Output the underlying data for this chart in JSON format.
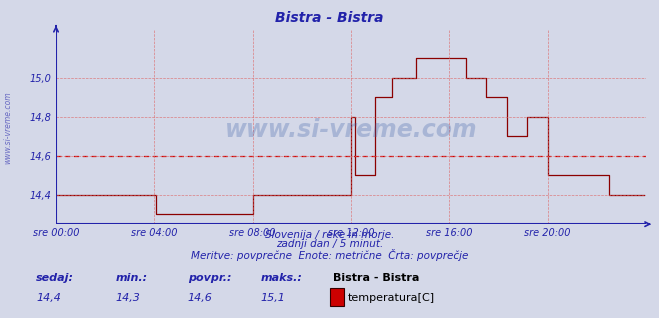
{
  "title": "Bistra - Bistra",
  "title_color": "#2222aa",
  "bg_color": "#d4d8e8",
  "plot_bg_color": "#d4d8e8",
  "line_color": "#8b0000",
  "avg_line_color": "#cc0000",
  "grid_color": "#dd6666",
  "axis_color": "#2222aa",
  "tick_color": "#2222aa",
  "ylim": [
    14.25,
    15.25
  ],
  "ytick_vals": [
    14.4,
    14.6,
    14.8,
    15.0
  ],
  "ytick_labels": [
    "14,4",
    "14,6",
    "14,8",
    "15,0"
  ],
  "avg_value": 14.6,
  "xtick_labels": [
    "sre 00:00",
    "sre 04:00",
    "sre 08:00",
    "sre 12:00",
    "sre 16:00",
    "sre 20:00"
  ],
  "xtick_positions": [
    0,
    48,
    96,
    144,
    192,
    240
  ],
  "total_points": 288,
  "subtitle1": "Slovenija / reke in morje.",
  "subtitle2": "zadnji dan / 5 minut.",
  "subtitle3": "Meritve: povprečne  Enote: metrične  Črta: povprečje",
  "footer_label1": "sedaj:",
  "footer_label2": "min.:",
  "footer_label3": "povpr.:",
  "footer_label4": "maks.:",
  "footer_val1": "14,4",
  "footer_val2": "14,3",
  "footer_val3": "14,6",
  "footer_val4": "15,1",
  "footer_series": "Bistra - Bistra",
  "footer_meas": "temperatura[C]",
  "watermark": "www.si-vreme.com",
  "left_label": "www.si-vreme.com",
  "temperature_data": [
    14.4,
    14.4,
    14.4,
    14.4,
    14.4,
    14.4,
    14.4,
    14.4,
    14.4,
    14.4,
    14.4,
    14.4,
    14.4,
    14.4,
    14.4,
    14.4,
    14.4,
    14.4,
    14.4,
    14.4,
    14.4,
    14.4,
    14.4,
    14.4,
    14.4,
    14.4,
    14.4,
    14.4,
    14.4,
    14.4,
    14.4,
    14.4,
    14.4,
    14.4,
    14.4,
    14.4,
    14.4,
    14.4,
    14.4,
    14.4,
    14.4,
    14.4,
    14.4,
    14.4,
    14.4,
    14.4,
    14.4,
    14.4,
    14.4,
    14.3,
    14.3,
    14.3,
    14.3,
    14.3,
    14.3,
    14.3,
    14.3,
    14.3,
    14.3,
    14.3,
    14.3,
    14.3,
    14.3,
    14.3,
    14.3,
    14.3,
    14.3,
    14.3,
    14.3,
    14.3,
    14.3,
    14.3,
    14.3,
    14.3,
    14.3,
    14.3,
    14.3,
    14.3,
    14.3,
    14.3,
    14.3,
    14.3,
    14.3,
    14.3,
    14.3,
    14.3,
    14.3,
    14.3,
    14.3,
    14.3,
    14.3,
    14.3,
    14.3,
    14.3,
    14.3,
    14.3,
    14.4,
    14.4,
    14.4,
    14.4,
    14.4,
    14.4,
    14.4,
    14.4,
    14.4,
    14.4,
    14.4,
    14.4,
    14.4,
    14.4,
    14.4,
    14.4,
    14.4,
    14.4,
    14.4,
    14.4,
    14.4,
    14.4,
    14.4,
    14.4,
    14.4,
    14.4,
    14.4,
    14.4,
    14.4,
    14.4,
    14.4,
    14.4,
    14.4,
    14.4,
    14.4,
    14.4,
    14.4,
    14.4,
    14.4,
    14.4,
    14.4,
    14.4,
    14.4,
    14.4,
    14.4,
    14.4,
    14.4,
    14.4,
    14.8,
    14.8,
    14.5,
    14.5,
    14.5,
    14.5,
    14.5,
    14.5,
    14.5,
    14.5,
    14.5,
    14.5,
    14.9,
    14.9,
    14.9,
    14.9,
    14.9,
    14.9,
    14.9,
    14.9,
    15.0,
    15.0,
    15.0,
    15.0,
    15.0,
    15.0,
    15.0,
    15.0,
    15.0,
    15.0,
    15.0,
    15.0,
    15.1,
    15.1,
    15.1,
    15.1,
    15.1,
    15.1,
    15.1,
    15.1,
    15.1,
    15.1,
    15.1,
    15.1,
    15.1,
    15.1,
    15.1,
    15.1,
    15.1,
    15.1,
    15.1,
    15.1,
    15.1,
    15.1,
    15.1,
    15.1,
    15.0,
    15.0,
    15.0,
    15.0,
    15.0,
    15.0,
    15.0,
    15.0,
    15.0,
    15.0,
    14.9,
    14.9,
    14.9,
    14.9,
    14.9,
    14.9,
    14.9,
    14.9,
    14.9,
    14.9,
    14.7,
    14.7,
    14.7,
    14.7,
    14.7,
    14.7,
    14.7,
    14.7,
    14.7,
    14.7,
    14.8,
    14.8,
    14.8,
    14.8,
    14.8,
    14.8,
    14.8,
    14.8,
    14.8,
    14.8,
    14.5,
    14.5,
    14.5,
    14.5,
    14.5,
    14.5,
    14.5,
    14.5,
    14.5,
    14.5,
    14.5,
    14.5,
    14.5,
    14.5,
    14.5,
    14.5,
    14.5,
    14.5,
    14.5,
    14.5,
    14.5,
    14.5,
    14.5,
    14.5,
    14.5,
    14.5,
    14.5,
    14.5,
    14.5,
    14.5,
    14.4,
    14.4,
    14.4,
    14.4,
    14.4,
    14.4,
    14.4,
    14.4,
    14.4,
    14.4,
    14.4,
    14.4,
    14.4,
    14.4,
    14.4,
    14.4,
    14.4,
    14.4
  ]
}
